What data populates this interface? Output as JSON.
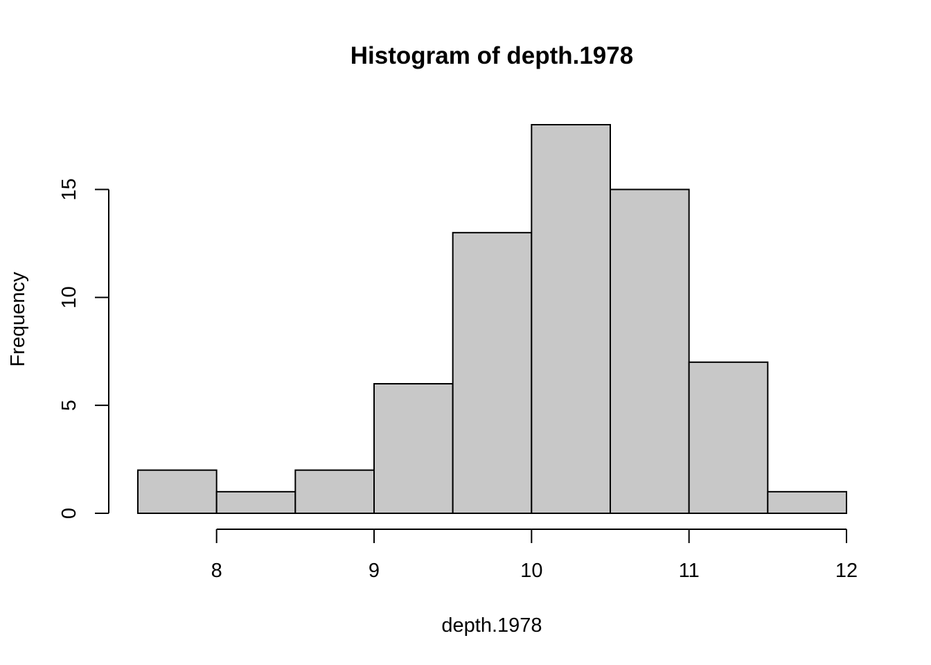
{
  "chart_data": {
    "type": "bar",
    "title": "Histogram of depth.1978",
    "xlabel": "depth.1978",
    "ylabel": "Frequency",
    "bin_edges": [
      7.5,
      8.0,
      8.5,
      9.0,
      9.5,
      10.0,
      10.5,
      11.0,
      11.5,
      12.0
    ],
    "values": [
      2,
      1,
      2,
      6,
      13,
      18,
      15,
      7,
      1
    ],
    "xlim": [
      7.5,
      12.0
    ],
    "ylim": [
      0,
      18
    ],
    "x_ticks": [
      8,
      9,
      10,
      11,
      12
    ],
    "x_tick_labels": [
      "8",
      "9",
      "10",
      "11",
      "12"
    ],
    "y_ticks": [
      0,
      5,
      10,
      15
    ],
    "y_tick_labels": [
      "0",
      "5",
      "10",
      "15"
    ],
    "bar_color": "#c8c8c8",
    "grid": false,
    "legend": "none"
  }
}
